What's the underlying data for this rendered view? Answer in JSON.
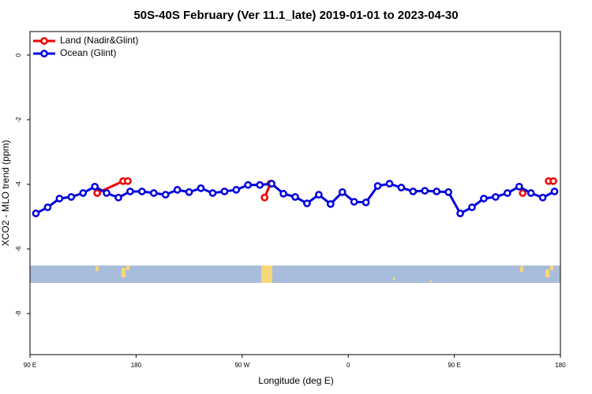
{
  "chart_data": {
    "type": "line",
    "title": "50S-40S February (Ver 11.1_late)   2019-01-01 to 2023-04-30",
    "xlabel": "Longitude (deg E)",
    "ylabel": "XCO2 - MLO trend (ppm)",
    "xlim": [
      90,
      540
    ],
    "ylim": [
      -9.27,
      0.73
    ],
    "xticks": [
      {
        "value": 90,
        "label": "90 E"
      },
      180,
      {
        "value": 270,
        "label": "90 W"
      },
      {
        "value": 360,
        "label": "0"
      },
      {
        "value": 450,
        "label": "90 E"
      },
      {
        "value": 540,
        "label": "180"
      }
    ],
    "yticks": [
      0,
      -2,
      -4,
      -6,
      -8
    ],
    "legend": "top-left",
    "series": [
      {
        "name": "Land (Nadir&Glint)",
        "color": "#ee0000",
        "x": [
          147,
          169,
          173,
          null,
          289,
          294,
          null,
          508,
          null,
          530,
          534
        ],
        "values": [
          -4.27,
          -3.9,
          -3.9,
          null,
          -4.41,
          -3.98,
          null,
          -4.27,
          null,
          -3.9,
          -3.9
        ]
      },
      {
        "name": "Ocean (Glint)",
        "color": "#0000dd",
        "x": [
          95,
          105,
          115,
          125,
          135,
          145,
          155,
          165,
          175,
          185,
          195,
          205,
          215,
          225,
          235,
          245,
          255,
          265,
          275,
          285,
          295,
          305,
          315,
          325,
          335,
          345,
          355,
          365,
          375,
          385,
          395,
          405,
          415,
          425,
          435,
          445,
          455,
          465,
          475,
          485,
          495,
          505,
          515,
          525,
          535
        ],
        "values": [
          -4.9,
          -4.71,
          -4.44,
          -4.39,
          -4.27,
          -4.07,
          -4.27,
          -4.41,
          -4.22,
          -4.22,
          -4.27,
          -4.32,
          -4.17,
          -4.24,
          -4.12,
          -4.27,
          -4.22,
          -4.17,
          -4.02,
          -4.02,
          -3.98,
          -4.29,
          -4.39,
          -4.59,
          -4.32,
          -4.61,
          -4.24,
          -4.54,
          -4.56,
          -4.05,
          -3.98,
          -4.1,
          -4.22,
          -4.2,
          -4.22,
          -4.24,
          -4.9,
          -4.71,
          -4.44,
          -4.39,
          -4.27,
          -4.07,
          -4.27,
          -4.41,
          -4.22
        ]
      }
    ]
  }
}
